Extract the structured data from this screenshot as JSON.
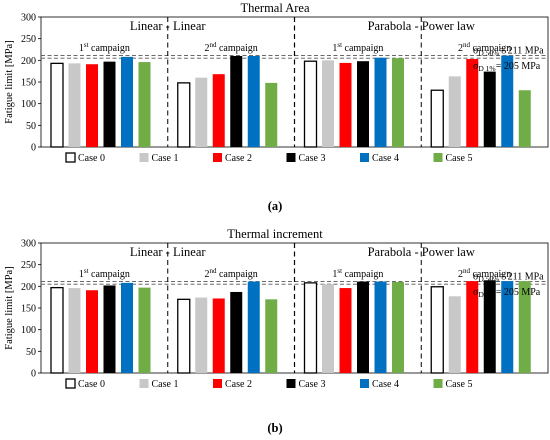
{
  "panel_labels": [
    "(a)",
    "(b)"
  ],
  "threshold_labels": {
    "d50": {
      "sym": "σ",
      "sub": "D 50%",
      "val": "= 211 MPa"
    },
    "d1": {
      "sym": "σ",
      "sub": "D 1%",
      "val": "= 205 MPa"
    }
  },
  "section_titles": [
    "Linear - Linear",
    "Parabola - Power law"
  ],
  "campaign_labels": [
    {
      "num": "1",
      "sup": "st",
      "text": " campaign"
    },
    {
      "num": "2",
      "sup": "nd",
      "text": " campaign"
    }
  ],
  "colors": {
    "Case 0": "#ffffff",
    "Case 1": "#c8c8c8",
    "Case 2": "#ff0000",
    "Case 3": "#000000",
    "Case 4": "#0070c0",
    "Case 5": "#70ad47"
  },
  "chart_data": [
    {
      "type": "bar",
      "title": "Thermal Area",
      "ylabel": "Fatigue limit  [MPa]",
      "ylim": [
        0,
        300
      ],
      "yticks": [
        0,
        50,
        100,
        150,
        200,
        250,
        300
      ],
      "thresholds": [
        211,
        205
      ],
      "categories": [
        "Linear-Linear 1st campaign",
        "Linear-Linear 2nd campaign",
        "Parabola-Power law 1st campaign",
        "Parabola-Power law 2nd campaign"
      ],
      "series": [
        {
          "name": "Case 0",
          "values": [
            193,
            148,
            198,
            131
          ]
        },
        {
          "name": "Case 1",
          "values": [
            193,
            160,
            200,
            163
          ]
        },
        {
          "name": "Case 2",
          "values": [
            191,
            168,
            194,
            203
          ]
        },
        {
          "name": "Case 3",
          "values": [
            197,
            210,
            198,
            174
          ]
        },
        {
          "name": "Case 4",
          "values": [
            208,
            210,
            206,
            211
          ]
        },
        {
          "name": "Case 5",
          "values": [
            196,
            148,
            205,
            131
          ]
        }
      ]
    },
    {
      "type": "bar",
      "title": "Thermal increment",
      "ylabel": "Fatigue limit  [MPa]",
      "ylim": [
        0,
        300
      ],
      "yticks": [
        0,
        50,
        100,
        150,
        200,
        250,
        300
      ],
      "thresholds": [
        211,
        205
      ],
      "categories": [
        "Linear-Linear 1st campaign",
        "Linear-Linear 2nd campaign",
        "Parabola-Power law 1st campaign",
        "Parabola-Power law 2nd campaign"
      ],
      "series": [
        {
          "name": "Case 0",
          "values": [
            197,
            170,
            208,
            199
          ]
        },
        {
          "name": "Case 1",
          "values": [
            196,
            174,
            205,
            177
          ]
        },
        {
          "name": "Case 2",
          "values": [
            191,
            172,
            196,
            212
          ]
        },
        {
          "name": "Case 3",
          "values": [
            202,
            187,
            211,
            214
          ]
        },
        {
          "name": "Case 4",
          "values": [
            208,
            211,
            211,
            212
          ]
        },
        {
          "name": "Case 5",
          "values": [
            197,
            170,
            210,
            212
          ]
        }
      ]
    }
  ]
}
